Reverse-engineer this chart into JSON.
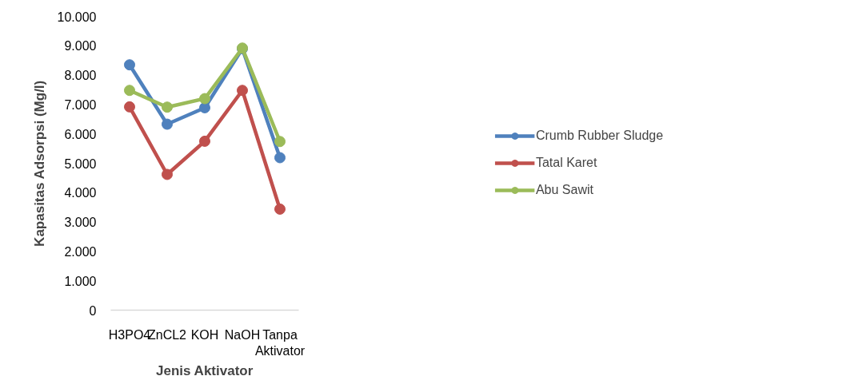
{
  "chart_data": {
    "type": "line",
    "xlabel": "Jenis Aktivator",
    "ylabel": "Kapasitas Adsorpsi (Mg/l)",
    "categories": [
      "H3PO4",
      "ZnCL2",
      "KOH",
      "NaOH",
      "Tanpa Aktivator"
    ],
    "series": [
      {
        "name": "Crumb Rubber Sludge",
        "color": "#4f81bd",
        "values": [
          8350,
          6330,
          6890,
          8900,
          5190
        ]
      },
      {
        "name": "Tatal Karet",
        "color": "#c0504d",
        "values": [
          6920,
          4620,
          5750,
          7480,
          3440
        ]
      },
      {
        "name": "Abu Sawit",
        "color": "#9bbb59",
        "values": [
          7480,
          6910,
          7200,
          8920,
          5740
        ]
      }
    ],
    "ylim": [
      0,
      10000
    ],
    "yticks": [
      0,
      {
        "value": 1000,
        "label": "1.000"
      },
      {
        "value": 2000,
        "label": "2.000"
      },
      {
        "value": 3000,
        "label": "3.000"
      },
      {
        "value": 4000,
        "label": "4.000"
      },
      {
        "value": 5000,
        "label": "5.000"
      },
      {
        "value": 6000,
        "label": "6.000"
      },
      {
        "value": 7000,
        "label": "7.000"
      },
      {
        "value": 8000,
        "label": "8.000"
      },
      {
        "value": 9000,
        "label": "9.000"
      },
      {
        "value": 10000,
        "label": "10.000"
      }
    ],
    "grid": false,
    "legend": "right",
    "marker": "circle",
    "line_style": "solid"
  }
}
